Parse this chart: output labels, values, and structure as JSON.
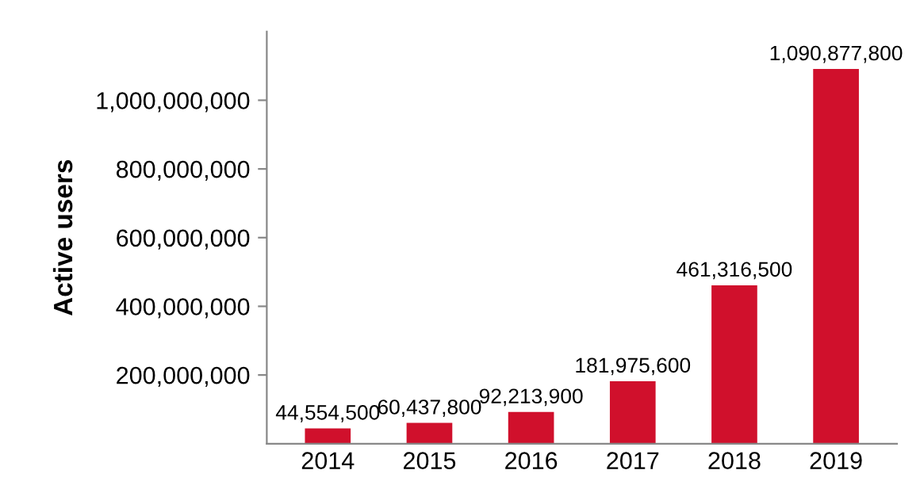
{
  "chart_data": {
    "type": "bar",
    "ylabel": "Active users",
    "categories": [
      "2014",
      "2015",
      "2016",
      "2017",
      "2018",
      "2019"
    ],
    "values": [
      44554500,
      60437800,
      92213900,
      181975600,
      461316500,
      1090877800
    ],
    "color": "#d0102c",
    "value_labels": [
      "44,554,500",
      "60,437,800",
      "92,213,900",
      "181,975,600",
      "461,316,500",
      "1,090,877,800"
    ],
    "ylim": [
      0,
      1200000000
    ],
    "yticks": [
      {
        "value": 200000000,
        "label": "200,000,000"
      },
      {
        "value": 400000000,
        "label": "400,000,000"
      },
      {
        "value": 600000000,
        "label": "600,000,000"
      },
      {
        "value": 800000000,
        "label": "800,000,000"
      },
      {
        "value": 1000000000,
        "label": "1,000,000,000"
      }
    ],
    "grid": false,
    "legend": false
  }
}
